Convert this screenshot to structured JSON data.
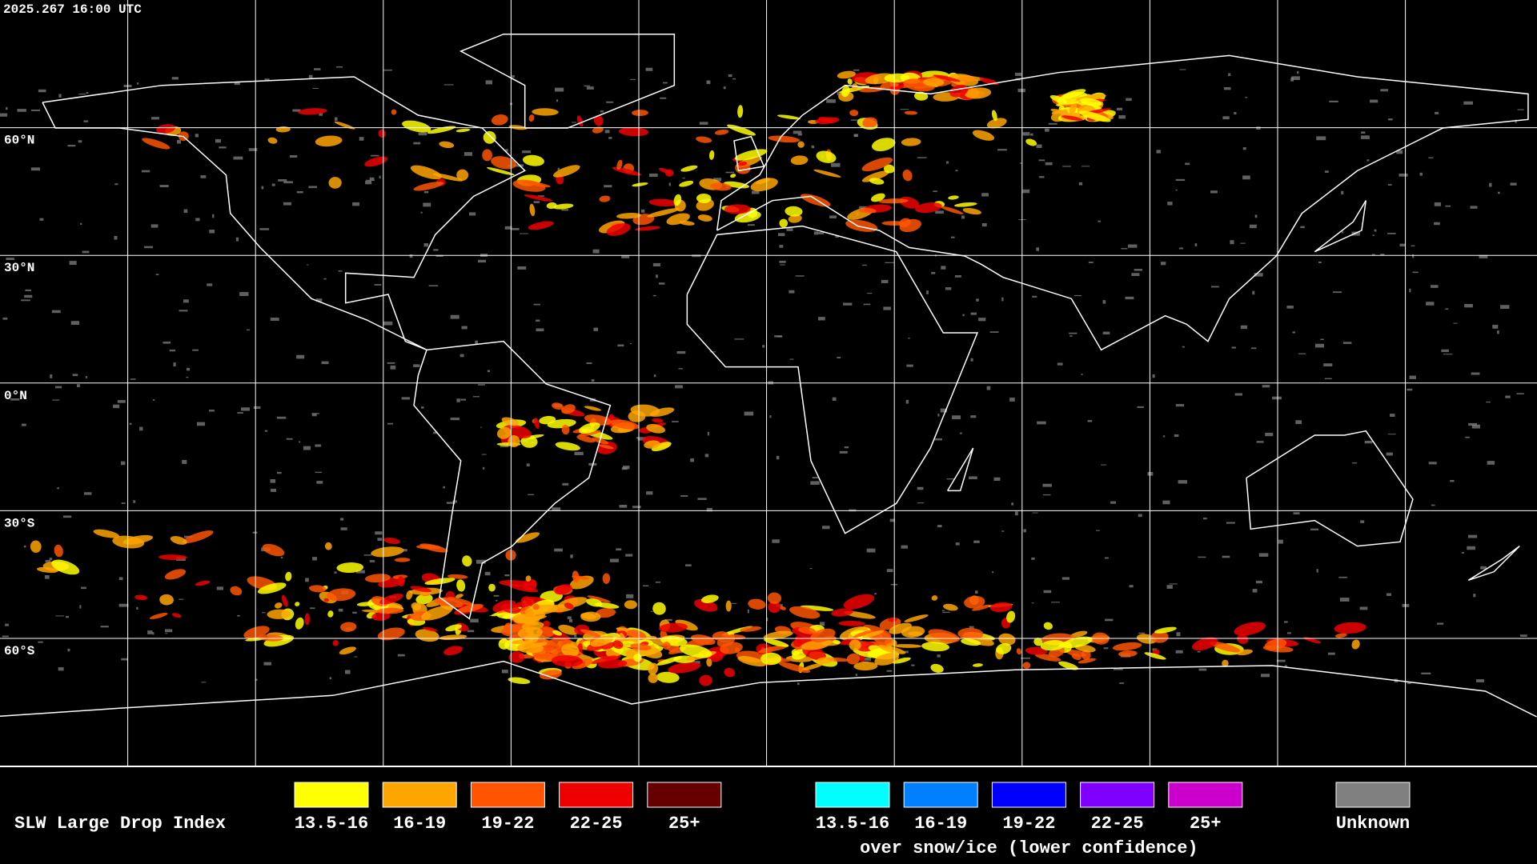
{
  "header": {
    "timestamp": "2025.267 16:00 UTC"
  },
  "map": {
    "lat_labels": [
      "60°N",
      "30°N",
      "0°N",
      "30°S",
      "60°S"
    ]
  },
  "legend": {
    "title": "SLW Large Drop Index",
    "groups": [
      {
        "items": [
          {
            "label": "13.5-16",
            "color": "#ffff00"
          },
          {
            "label": "16-19",
            "color": "#ffa500"
          },
          {
            "label": "19-22",
            "color": "#ff5500"
          },
          {
            "label": "22-25",
            "color": "#ee0000"
          },
          {
            "label": "25+",
            "color": "#660000"
          }
        ]
      },
      {
        "items": [
          {
            "label": "13.5-16",
            "color": "#00ffff"
          },
          {
            "label": "16-19",
            "color": "#0080ff"
          },
          {
            "label": "19-22",
            "color": "#0000ff"
          },
          {
            "label": "22-25",
            "color": "#7f00ff"
          },
          {
            "label": "25+",
            "color": "#cc00cc"
          }
        ],
        "caption": "over snow/ice (lower confidence)"
      }
    ],
    "unknown": {
      "label": "Unknown",
      "color": "#808080"
    }
  }
}
